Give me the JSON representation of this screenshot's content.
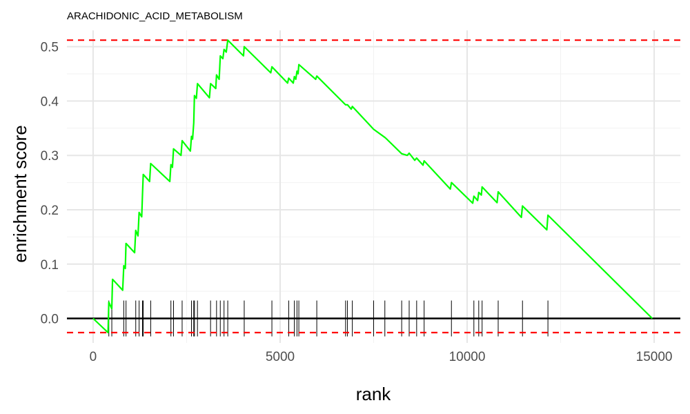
{
  "chart_data": {
    "type": "line",
    "title": "ARACHIDONIC_ACID_METABOLISM",
    "xlabel": "rank",
    "ylabel": "enrichment score",
    "xlim": [
      -700,
      15700
    ],
    "ylim": [
      -0.045,
      0.53
    ],
    "x_ticks": [
      0,
      5000,
      10000,
      15000
    ],
    "x_tick_labels": [
      "0",
      "5000",
      "10000",
      "15000"
    ],
    "y_ticks": [
      0.0,
      0.1,
      0.2,
      0.3,
      0.4,
      0.5
    ],
    "y_tick_labels": [
      "0.0",
      "0.1",
      "0.2",
      "0.3",
      "0.4",
      "0.5"
    ],
    "grid": true,
    "colors": {
      "curve": "#00ff00",
      "threshold": "#ff0000",
      "zero_line": "#000000",
      "hits": "#000000"
    },
    "thresholds": [
      0.512,
      -0.026
    ],
    "series": [
      {
        "points": [
          [
            0,
            0.0
          ],
          [
            400,
            -0.026
          ],
          [
            420,
            0.03
          ],
          [
            500,
            0.018
          ],
          [
            520,
            0.072
          ],
          [
            790,
            0.052
          ],
          [
            820,
            0.097
          ],
          [
            860,
            0.092
          ],
          [
            880,
            0.138
          ],
          [
            1110,
            0.121
          ],
          [
            1140,
            0.162
          ],
          [
            1200,
            0.152
          ],
          [
            1230,
            0.195
          ],
          [
            1300,
            0.187
          ],
          [
            1320,
            0.228
          ],
          [
            1340,
            0.265
          ],
          [
            1510,
            0.252
          ],
          [
            1540,
            0.285
          ],
          [
            2050,
            0.252
          ],
          [
            2080,
            0.283
          ],
          [
            2120,
            0.278
          ],
          [
            2150,
            0.312
          ],
          [
            2350,
            0.3
          ],
          [
            2380,
            0.327
          ],
          [
            2600,
            0.308
          ],
          [
            2630,
            0.335
          ],
          [
            2660,
            0.33
          ],
          [
            2690,
            0.36
          ],
          [
            2710,
            0.41
          ],
          [
            2760,
            0.405
          ],
          [
            2790,
            0.432
          ],
          [
            3110,
            0.406
          ],
          [
            3140,
            0.432
          ],
          [
            3280,
            0.423
          ],
          [
            3300,
            0.448
          ],
          [
            3370,
            0.44
          ],
          [
            3400,
            0.483
          ],
          [
            3470,
            0.478
          ],
          [
            3500,
            0.495
          ],
          [
            3560,
            0.49
          ],
          [
            3600,
            0.512
          ],
          [
            4020,
            0.483
          ],
          [
            4040,
            0.5
          ],
          [
            4750,
            0.452
          ],
          [
            4780,
            0.463
          ],
          [
            5200,
            0.433
          ],
          [
            5230,
            0.442
          ],
          [
            5350,
            0.433
          ],
          [
            5380,
            0.445
          ],
          [
            5420,
            0.44
          ],
          [
            5450,
            0.455
          ],
          [
            5480,
            0.45
          ],
          [
            5500,
            0.467
          ],
          [
            5950,
            0.44
          ],
          [
            5980,
            0.446
          ],
          [
            6750,
            0.393
          ],
          [
            6800,
            0.393
          ],
          [
            6900,
            0.385
          ],
          [
            6930,
            0.39
          ],
          [
            7500,
            0.348
          ],
          [
            7800,
            0.333
          ],
          [
            7850,
            0.33
          ],
          [
            8250,
            0.303
          ],
          [
            8400,
            0.3
          ],
          [
            8450,
            0.304
          ],
          [
            8600,
            0.291
          ],
          [
            8650,
            0.295
          ],
          [
            8820,
            0.282
          ],
          [
            8850,
            0.29
          ],
          [
            9550,
            0.238
          ],
          [
            9580,
            0.25
          ],
          [
            10150,
            0.212
          ],
          [
            10180,
            0.225
          ],
          [
            10280,
            0.217
          ],
          [
            10310,
            0.232
          ],
          [
            10380,
            0.227
          ],
          [
            10400,
            0.242
          ],
          [
            10800,
            0.213
          ],
          [
            10830,
            0.233
          ],
          [
            11450,
            0.186
          ],
          [
            11480,
            0.207
          ],
          [
            12130,
            0.163
          ],
          [
            12160,
            0.19
          ],
          [
            14950,
            0.0
          ]
        ]
      }
    ],
    "hits": [
      420,
      500,
      820,
      880,
      1140,
      1230,
      1320,
      1340,
      1540,
      2080,
      2150,
      2380,
      2630,
      2690,
      2710,
      2790,
      3140,
      3300,
      3400,
      3500,
      3600,
      4040,
      4780,
      5230,
      5380,
      5450,
      5500,
      5980,
      6750,
      6800,
      6930,
      7500,
      7800,
      8250,
      8450,
      8650,
      8850,
      9580,
      10180,
      10310,
      10400,
      10830,
      11480,
      12160
    ]
  }
}
